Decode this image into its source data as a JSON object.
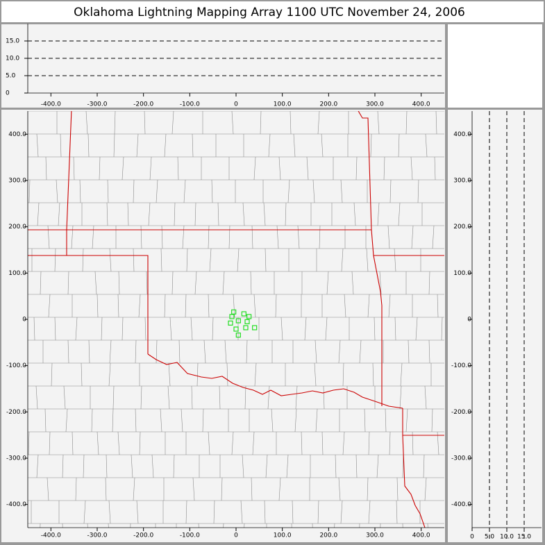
{
  "title": "Oklahoma Lightning Mapping Array   1100 UTC  November 24, 2006",
  "chart_data": [
    {
      "type": "scatter",
      "color": "#22dd22",
      "xlim": [
        -450,
        450
      ],
      "ylim": [
        -450,
        450
      ],
      "xticks": [
        {
          "value": -400,
          "label": "-400.0"
        },
        {
          "value": -300,
          "label": "-300.0"
        },
        {
          "value": -200,
          "label": "-200.0"
        },
        {
          "value": -100,
          "label": "-100.0"
        },
        0,
        {
          "value": 100,
          "label": "100.0"
        },
        {
          "value": 200,
          "label": "200.0"
        },
        {
          "value": 300,
          "label": "300.0"
        },
        {
          "value": 400,
          "label": "400.0"
        }
      ],
      "yticks": [
        {
          "value": -400,
          "label": "-400.0"
        },
        {
          "value": -300,
          "label": "-300.0"
        },
        {
          "value": -200,
          "label": "-200.0"
        },
        {
          "value": -100,
          "label": "-100.0"
        },
        0,
        {
          "value": 100,
          "label": "100.0"
        },
        {
          "value": 200,
          "label": "200.0"
        },
        {
          "value": 300,
          "label": "300.0"
        },
        {
          "value": 400,
          "label": "400.0"
        }
      ],
      "x": [
        -5,
        -9,
        17,
        28,
        5,
        -12,
        24,
        40,
        21,
        0,
        5
      ],
      "y": [
        16,
        6,
        12,
        6,
        -3,
        -8,
        -5,
        -18,
        -18,
        -21,
        -34
      ]
    },
    {
      "type": "scatter",
      "grid": true,
      "xlim": [
        -450,
        450
      ],
      "ylim": [
        0,
        20
      ],
      "xticks": [
        {
          "value": -400,
          "label": "-400.0"
        },
        {
          "value": -300,
          "label": "-300.0"
        },
        {
          "value": -200,
          "label": "-200.0"
        },
        {
          "value": -100,
          "label": "-100.0"
        },
        0,
        {
          "value": 100,
          "label": "100.0"
        },
        {
          "value": 200,
          "label": "200.0"
        },
        {
          "value": 300,
          "label": "300.0"
        },
        {
          "value": 400,
          "label": "400.0"
        }
      ],
      "yticks": [
        0,
        {
          "value": 5,
          "label": "5.0"
        },
        {
          "value": 10,
          "label": "10.0"
        },
        {
          "value": 15,
          "label": "15.0"
        }
      ]
    },
    {
      "type": "scatter",
      "grid": true,
      "xlim": [
        0,
        20
      ],
      "ylim": [
        -450,
        450
      ],
      "xticks": [
        0,
        {
          "value": 5,
          "label": "5.0"
        },
        {
          "value": 10,
          "label": "10.0"
        },
        {
          "value": 15,
          "label": "15.0"
        }
      ],
      "yticks": [
        {
          "value": -400,
          "label": "-400.0"
        },
        {
          "value": -300,
          "label": "-300.0"
        },
        {
          "value": -200,
          "label": "-200.0"
        },
        {
          "value": -100,
          "label": "-100.0"
        },
        0,
        {
          "value": 100,
          "label": "100.0"
        },
        {
          "value": 200,
          "label": "200.0"
        },
        {
          "value": 300,
          "label": "300.0"
        },
        {
          "value": 400,
          "label": "400.0"
        }
      ]
    }
  ]
}
